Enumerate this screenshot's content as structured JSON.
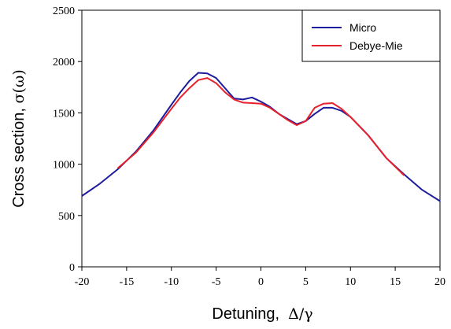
{
  "chart_data": {
    "type": "line",
    "title": "",
    "xlabel": {
      "text": "Detuning,",
      "symbol": "Δ/γ"
    },
    "ylabel": {
      "text": "Cross section,",
      "symbol": "σ(ω)"
    },
    "xlim": [
      -20,
      20
    ],
    "ylim": [
      0,
      2500
    ],
    "xticks": [
      -20,
      -15,
      -10,
      -5,
      0,
      5,
      10,
      15,
      20
    ],
    "yticks": [
      0,
      500,
      1000,
      1500,
      2000,
      2500
    ],
    "grid": false,
    "legend_position": "top-right",
    "series": [
      {
        "name": "Micro",
        "color": "#1c1c9c",
        "points": [
          [
            -20,
            690
          ],
          [
            -18,
            810
          ],
          [
            -16,
            950
          ],
          [
            -14,
            1120
          ],
          [
            -12,
            1330
          ],
          [
            -10,
            1580
          ],
          [
            -9,
            1700
          ],
          [
            -8,
            1810
          ],
          [
            -7,
            1890
          ],
          [
            -6,
            1885
          ],
          [
            -5,
            1840
          ],
          [
            -4,
            1740
          ],
          [
            -3,
            1640
          ],
          [
            -2,
            1630
          ],
          [
            -1,
            1650
          ],
          [
            0,
            1610
          ],
          [
            1,
            1560
          ],
          [
            2,
            1490
          ],
          [
            3,
            1440
          ],
          [
            4,
            1390
          ],
          [
            5,
            1420
          ],
          [
            6,
            1490
          ],
          [
            7,
            1550
          ],
          [
            8,
            1550
          ],
          [
            9,
            1520
          ],
          [
            10,
            1460
          ],
          [
            12,
            1280
          ],
          [
            14,
            1060
          ],
          [
            16,
            900
          ],
          [
            18,
            750
          ],
          [
            20,
            640
          ]
        ]
      },
      {
        "name": "Debye-Mie",
        "color": "#e8202a",
        "points": [
          [
            -16,
            960
          ],
          [
            -14,
            1110
          ],
          [
            -12,
            1310
          ],
          [
            -10,
            1540
          ],
          [
            -9,
            1650
          ],
          [
            -8,
            1740
          ],
          [
            -7,
            1820
          ],
          [
            -6,
            1840
          ],
          [
            -5,
            1790
          ],
          [
            -4,
            1700
          ],
          [
            -3,
            1630
          ],
          [
            -2,
            1600
          ],
          [
            -1,
            1595
          ],
          [
            0,
            1590
          ],
          [
            1,
            1550
          ],
          [
            2,
            1490
          ],
          [
            3,
            1430
          ],
          [
            4,
            1380
          ],
          [
            5,
            1420
          ],
          [
            6,
            1550
          ],
          [
            7,
            1590
          ],
          [
            8,
            1595
          ],
          [
            9,
            1540
          ],
          [
            10,
            1460
          ],
          [
            12,
            1280
          ],
          [
            14,
            1060
          ],
          [
            16,
            890
          ]
        ]
      }
    ]
  }
}
